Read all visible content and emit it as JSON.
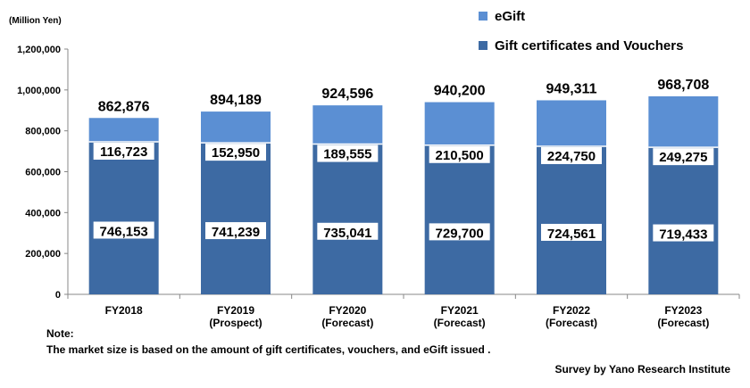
{
  "unit_label": "(Million Yen)",
  "note": {
    "title": "Note:",
    "text": "The market size is based on the amount of gift certificates, vouchers, and eGift issued ."
  },
  "source": "Survey by Yano Research Institute",
  "colors": {
    "egift": "#5b8fd3",
    "vouchers": "#3d6aa3",
    "axis": "#888888",
    "separator": "#ffffff"
  },
  "chart_data": {
    "type": "bar",
    "stacked": true,
    "categories": [
      [
        "FY2018"
      ],
      [
        "FY2019",
        "(Prospect)"
      ],
      [
        "FY2020",
        "(Forecast)"
      ],
      [
        "FY2021",
        "(Forecast)"
      ],
      [
        "FY2022",
        "(Forecast)"
      ],
      [
        "FY2023",
        "(Forecast)"
      ]
    ],
    "series": [
      {
        "name": "Gift certificates and Vouchers",
        "values": [
          746153,
          741239,
          735041,
          729700,
          724561,
          719433
        ]
      },
      {
        "name": "eGift",
        "values": [
          116723,
          152950,
          189555,
          210500,
          224750,
          249275
        ]
      }
    ],
    "value_labels": {
      "vouchers": [
        "746,153",
        "741,239",
        "735,041",
        "729,700",
        "724,561",
        "719,433"
      ],
      "egift": [
        "116,723",
        "152,950",
        "189,555",
        "210,500",
        "224,750",
        "249,275"
      ]
    },
    "totals": [
      862876,
      894189,
      924596,
      940200,
      949311,
      968708
    ],
    "total_labels": [
      "862,876",
      "894,189",
      "924,596",
      "940,200",
      "949,311",
      "968,708"
    ],
    "ylim": [
      0,
      1200000
    ],
    "yticks": [
      0,
      200000,
      400000,
      600000,
      800000,
      1000000,
      1200000
    ],
    "ytick_labels": [
      "0",
      "200,000",
      "400,000",
      "600,000",
      "800,000",
      "1,000,000",
      "1,200,000"
    ],
    "legend": [
      "eGift",
      "Gift certificates and Vouchers"
    ],
    "legend_position": "top-right",
    "grid": false
  }
}
